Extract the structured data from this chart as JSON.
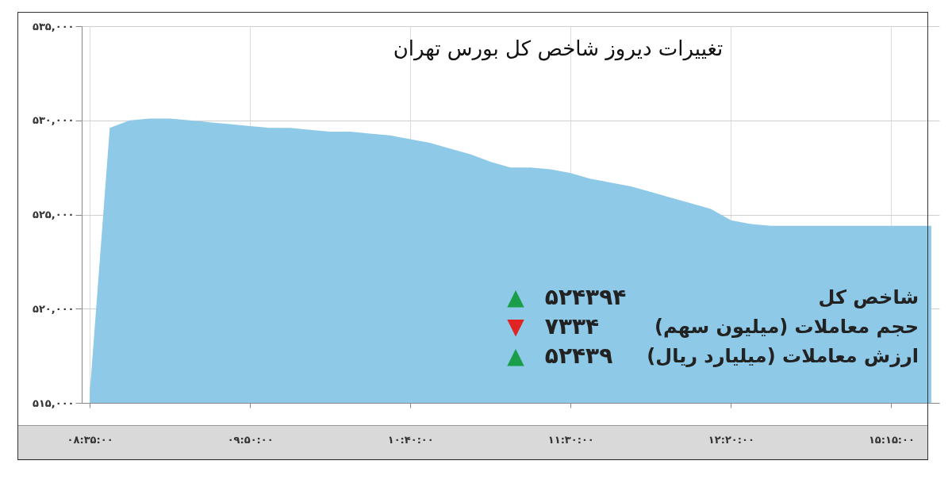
{
  "chart_data": {
    "type": "area",
    "title": "تغییرات دیروز شاخص کل بورس تهران",
    "categories": [
      "۰۸:۳۵:۰۰",
      null,
      null,
      null,
      null,
      null,
      null,
      null,
      "۰۹:۵۰:۰۰",
      null,
      null,
      null,
      null,
      null,
      null,
      null,
      "۱۰:۴۰:۰۰",
      null,
      null,
      null,
      null,
      null,
      null,
      null,
      "۱۱:۳۰:۰۰",
      null,
      null,
      null,
      null,
      null,
      null,
      null,
      "۱۲:۲۰:۰۰",
      null,
      null,
      null,
      null,
      null,
      null,
      null,
      "۱۵:۱۵:۰۰",
      null,
      null
    ],
    "series": [
      {
        "color": "#8ec9e8",
        "values": [
          515500,
          529600,
          530000,
          530100,
          530100,
          530000,
          529900,
          529800,
          529700,
          529600,
          529600,
          529500,
          529400,
          529400,
          529300,
          529200,
          529000,
          528800,
          528500,
          528200,
          527800,
          527500,
          527500,
          527400,
          527200,
          526900,
          526700,
          526500,
          526200,
          525900,
          525600,
          525300,
          524700,
          524500,
          524400,
          524400,
          524400,
          524400,
          524400,
          524400,
          524400,
          524400,
          524400
        ]
      }
    ],
    "ylim": [
      515000,
      535000
    ],
    "yticks": [
      {
        "value": 515000,
        "label": "۵۱۵,۰۰۰"
      },
      {
        "value": 520000,
        "label": "۵۲۰,۰۰۰"
      },
      {
        "value": 525000,
        "label": "۵۲۵,۰۰۰"
      },
      {
        "value": 530000,
        "label": "۵۳۰,۰۰۰"
      },
      {
        "value": 535000,
        "label": "۵۳۵,۰۰۰"
      }
    ],
    "grid": true,
    "annotations": [
      "شاخص کل",
      "۵۲۴۳۹۴",
      "▲",
      "حجم معاملات (میلیون سهم)",
      "۷۳۳۴",
      "▼",
      "ارزش معاملات (میلیارد ریال)",
      "۵۲۴۳۹",
      "▲"
    ]
  }
}
